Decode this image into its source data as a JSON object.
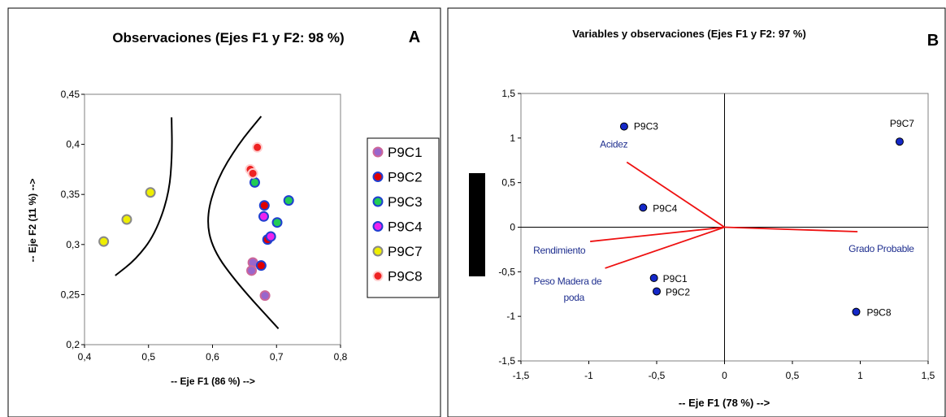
{
  "chart_data": [
    {
      "panel_label": "A",
      "type": "scatter",
      "title": "Observaciones (Ejes F1 y F2: 98 %)",
      "xlabel": "-- Eje F1 (86 %) -->",
      "ylabel": "-- Eje F2 (11 %) -->",
      "xlim": [
        0.4,
        0.8
      ],
      "ylim": [
        0.2,
        0.45
      ],
      "xticks": [
        "0,4",
        "0,5",
        "0,6",
        "0,7",
        "0,8"
      ],
      "yticks": [
        "0,2",
        "0,25",
        "0,3",
        "0,35",
        "0,4",
        "0,45"
      ],
      "xtick_values": [
        0.4,
        0.5,
        0.6,
        0.7,
        0.8
      ],
      "ytick_values": [
        0.2,
        0.25,
        0.3,
        0.35,
        0.4,
        0.45
      ],
      "grid": false,
      "legend_position": "right",
      "series": [
        {
          "name": "P9C1",
          "color": "#9966cc",
          "edge": "#cc6699",
          "points": [
            [
              0.663,
              0.282
            ],
            [
              0.661,
              0.274
            ],
            [
              0.682,
              0.249
            ]
          ]
        },
        {
          "name": "P9C2",
          "color": "#e00000",
          "edge": "#1f3fd0",
          "points": [
            [
              0.681,
              0.339
            ],
            [
              0.676,
              0.279
            ],
            [
              0.686,
              0.305
            ]
          ]
        },
        {
          "name": "P9C3",
          "color": "#22cc55",
          "edge": "#1f3fd0",
          "points": [
            [
              0.666,
              0.362
            ],
            [
              0.719,
              0.344
            ],
            [
              0.701,
              0.322
            ]
          ]
        },
        {
          "name": "P9C4",
          "color": "#ee22ee",
          "edge": "#1f3fd0",
          "points": [
            [
              0.68,
              0.328
            ],
            [
              0.691,
              0.308
            ]
          ]
        },
        {
          "name": "P9C7",
          "color": "#eeee00",
          "edge": "#888888",
          "points": [
            [
              0.43,
              0.303
            ],
            [
              0.466,
              0.325
            ],
            [
              0.503,
              0.352
            ]
          ]
        },
        {
          "name": "P9C8",
          "color": "#ee2222",
          "edge": "#ffcccc",
          "points": [
            [
              0.67,
              0.397
            ],
            [
              0.659,
              0.375
            ],
            [
              0.663,
              0.371
            ]
          ]
        }
      ],
      "boundary_curves": [
        [
          [
            0.536,
            0.427
          ],
          [
            0.537,
            0.39
          ],
          [
            0.532,
            0.35
          ],
          [
            0.51,
            0.31
          ],
          [
            0.48,
            0.285
          ],
          [
            0.448,
            0.269
          ]
        ],
        [
          [
            0.676,
            0.428
          ],
          [
            0.64,
            0.4
          ],
          [
            0.607,
            0.365
          ],
          [
            0.59,
            0.327
          ],
          [
            0.6,
            0.295
          ],
          [
            0.64,
            0.26
          ],
          [
            0.703,
            0.216
          ]
        ]
      ]
    },
    {
      "panel_label": "B",
      "type": "scatter",
      "title": "Variables y observaciones (Ejes F1 y F2: 97 %)",
      "xlabel": "-- Eje F1 (78 %) -->",
      "xlim": [
        -1.5,
        1.5
      ],
      "ylim": [
        -1.5,
        1.5
      ],
      "xticks": [
        "-1,5",
        "-1",
        "-0,5",
        "0",
        "0,5",
        "1",
        "1,5"
      ],
      "yticks": [
        "-1,5",
        "-1",
        "-0,5",
        "0",
        "0,5",
        "1",
        "1,5"
      ],
      "xtick_values": [
        -1.5,
        -1,
        -0.5,
        0,
        0.5,
        1,
        1.5
      ],
      "ytick_values": [
        -1.5,
        -1,
        -0.5,
        0,
        0.5,
        1,
        1.5
      ],
      "grid": false,
      "observations": [
        {
          "label": "P9C3",
          "x": -0.74,
          "y": 1.13
        },
        {
          "label": "P9C4",
          "x": -0.6,
          "y": 0.22
        },
        {
          "label": "P9C1",
          "x": -0.52,
          "y": -0.57
        },
        {
          "label": "P9C2",
          "x": -0.5,
          "y": -0.72
        },
        {
          "label": "P9C7",
          "x": 1.29,
          "y": 0.96
        },
        {
          "label": "P9C8",
          "x": 0.97,
          "y": -0.95
        }
      ],
      "variables": [
        {
          "label": "Acidez",
          "x": -0.72,
          "y": 0.73
        },
        {
          "label": "Rendimiento",
          "x": -0.99,
          "y": -0.16
        },
        {
          "label": "Peso Madera de poda",
          "label_lines": [
            "Peso Madera de",
            "poda"
          ],
          "x": -0.88,
          "y": -0.46
        },
        {
          "label": "Grado Probable",
          "x": 0.98,
          "y": -0.05
        }
      ],
      "marker_color": "#1428c8",
      "vector_color": "#ee1111",
      "label_color": "#1f2f8f"
    }
  ]
}
